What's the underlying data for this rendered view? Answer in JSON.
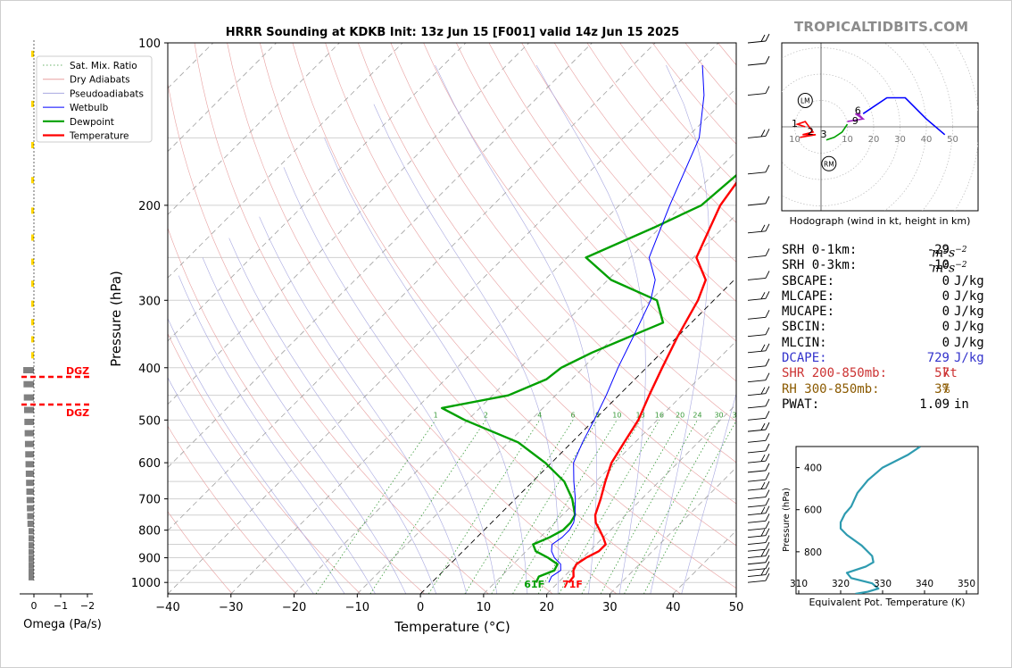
{
  "title": "HRRR Sounding at KDKB Init: 13z Jun 15 [F001] valid 14z Jun 15 2025",
  "site": "TROPICALTIDBITS.COM",
  "colors": {
    "temperature": "#ff0000",
    "dewpoint": "#00a000",
    "wetbulb": "#0000ff",
    "dgz": "#ff0000",
    "omega": "#808080",
    "omega_yellow": "#ffd700",
    "thetae": "#2e9bb0",
    "hodo_0_1": "#ff0000",
    "hodo_1_3": "#00a000",
    "hodo_3_6": "#a020c0",
    "hodo_6_9": "#0000ff",
    "dcape": "#3333cc",
    "shr": "#cc3333",
    "rh": "#8b5a00"
  },
  "chart_data": [
    {
      "type": "line",
      "subtype": "skew-t log-p",
      "title": "HRRR Sounding at KDKB Init: 13z Jun 15 [F001] valid 14z Jun 15 2025",
      "xlabel": "Temperature (°C)",
      "ylabel": "Pressure (hPa)",
      "xlim": [
        -40,
        50
      ],
      "ylim": [
        1050,
        100
      ],
      "yscale": "log",
      "x_ticks": [
        "−40",
        "−30",
        "−20",
        "−10",
        "0",
        "10",
        "20",
        "30",
        "40",
        "50"
      ],
      "y_ticks": [
        "100",
        "200",
        "300",
        "400",
        "500",
        "600",
        "700",
        "800",
        "900",
        "1000"
      ],
      "legend": [
        "Sat. Mix. Ratio",
        "Dry Adiabats",
        "Pseudoadiabats",
        "Wetbulb",
        "Dewpoint",
        "Temperature"
      ],
      "legend_position": "top-left",
      "mixing_ratio_labels": [
        "1",
        "2",
        "4",
        "6",
        "8",
        "10",
        "13",
        "16",
        "20",
        "24",
        "30",
        "36"
      ],
      "surface_labels": {
        "dewpoint": "61F",
        "temperature": "71F"
      },
      "series": [
        {
          "name": "Temperature",
          "points": [
            [
              21.7,
              1000
            ],
            [
              21.5,
              975
            ],
            [
              20.5,
              950
            ],
            [
              20.0,
              925
            ],
            [
              20.5,
              900
            ],
            [
              21.5,
              875
            ],
            [
              21.5,
              850
            ],
            [
              20.0,
              825
            ],
            [
              18.3,
              800
            ],
            [
              16.5,
              775
            ],
            [
              15.2,
              750
            ],
            [
              13.5,
              700
            ],
            [
              11.5,
              650
            ],
            [
              9.5,
              600
            ],
            [
              8.3,
              550
            ],
            [
              7.0,
              500
            ],
            [
              4.8,
              450
            ],
            [
              2.5,
              400
            ],
            [
              0.0,
              350
            ],
            [
              -2.5,
              300
            ],
            [
              -4.5,
              275
            ],
            [
              -9.5,
              250
            ],
            [
              -14.0,
              200
            ],
            [
              -17.0,
              150
            ],
            [
              -13.5,
              125
            ],
            [
              -5.5,
              110
            ],
            [
              0.5,
              100
            ]
          ]
        },
        {
          "name": "Dewpoint",
          "points": [
            [
              16.5,
              1000
            ],
            [
              16.0,
              975
            ],
            [
              17.5,
              950
            ],
            [
              17.0,
              925
            ],
            [
              14.5,
              900
            ],
            [
              11.5,
              875
            ],
            [
              10.0,
              850
            ],
            [
              11.5,
              825
            ],
            [
              12.5,
              800
            ],
            [
              12.5,
              775
            ],
            [
              12.0,
              750
            ],
            [
              9.0,
              700
            ],
            [
              5.0,
              650
            ],
            [
              -1.0,
              600
            ],
            [
              -8.5,
              550
            ],
            [
              -20.5,
              500
            ],
            [
              -26.0,
              475
            ],
            [
              -17.5,
              450
            ],
            [
              -14.0,
              420
            ],
            [
              -13.5,
              400
            ],
            [
              -11.0,
              375
            ],
            [
              -7.5,
              350
            ],
            [
              -4.5,
              330
            ],
            [
              -9.0,
              300
            ],
            [
              -19.5,
              275
            ],
            [
              -27.0,
              250
            ],
            [
              -21.0,
              220
            ],
            [
              -17.0,
              200
            ],
            [
              -16.0,
              170
            ],
            [
              -15.5,
              150
            ],
            [
              -18.0,
              125
            ],
            [
              -19.0,
              110
            ],
            [
              -15.5,
              100
            ]
          ]
        },
        {
          "name": "Wetbulb",
          "points": [
            [
              18.5,
              1000
            ],
            [
              18.0,
              975
            ],
            [
              18.5,
              950
            ],
            [
              17.5,
              925
            ],
            [
              15.5,
              900
            ],
            [
              14.0,
              875
            ],
            [
              13.0,
              850
            ],
            [
              13.5,
              825
            ],
            [
              13.5,
              800
            ],
            [
              13.0,
              775
            ],
            [
              12.0,
              750
            ],
            [
              9.5,
              700
            ],
            [
              6.5,
              650
            ],
            [
              3.5,
              600
            ],
            [
              1.7,
              550
            ],
            [
              0.0,
              500
            ],
            [
              -2.0,
              450
            ],
            [
              -4.5,
              400
            ],
            [
              -7.0,
              350
            ],
            [
              -10.0,
              300
            ],
            [
              -12.5,
              275
            ],
            [
              -17.0,
              250
            ],
            [
              -22.0,
              200
            ],
            [
              -28.0,
              150
            ],
            [
              -34.0,
              125
            ],
            [
              -39.0,
              110
            ]
          ]
        }
      ]
    },
    {
      "type": "bar",
      "subtype": "omega profile",
      "xlabel": "Omega (Pa/s)",
      "x_ticks": [
        "0",
        "−1",
        "−2"
      ],
      "dgz_label": "DGZ",
      "dgz_levels_hpa": [
        416,
        468
      ]
    },
    {
      "type": "line",
      "subtype": "hodograph",
      "caption": "Hodograph (wind in kt, height in km)",
      "ring_labels": [
        "10",
        "20",
        "30",
        "40",
        "50"
      ],
      "height_labels": [
        "1",
        "2",
        "3",
        "6",
        "9"
      ],
      "markers": [
        "LM",
        "RM"
      ]
    },
    {
      "type": "line",
      "subtype": "theta-e profile",
      "xlabel": "Equivalent Pot. Temperature (K)",
      "ylabel": "Pressure (hPa)",
      "x_ticks": [
        "310",
        "320",
        "330",
        "340",
        "350"
      ],
      "y_ticks": [
        "400",
        "600",
        "800"
      ],
      "xlim": [
        310,
        350
      ],
      "ylim": [
        1000,
        300
      ],
      "points": [
        [
          323.5,
          1000
        ],
        [
          326.5,
          990
        ],
        [
          329.0,
          975
        ],
        [
          327.5,
          950
        ],
        [
          322.5,
          925
        ],
        [
          321.5,
          900
        ],
        [
          326.0,
          870
        ],
        [
          327.8,
          850
        ],
        [
          327.5,
          820
        ],
        [
          325.0,
          770
        ],
        [
          321.5,
          720
        ],
        [
          320.0,
          690
        ],
        [
          320.0,
          660
        ],
        [
          321.0,
          620
        ],
        [
          322.5,
          585
        ],
        [
          324.0,
          520
        ],
        [
          326.5,
          460
        ],
        [
          330.0,
          400
        ],
        [
          336.0,
          340
        ],
        [
          339.0,
          300
        ]
      ]
    }
  ],
  "stats": [
    {
      "key": "SRH 0-1km:",
      "value": "-29",
      "unit_base": "m",
      "unit_sup1": "2",
      "unit_mid": "s",
      "unit_sup2": "−2",
      "color": "#000000"
    },
    {
      "key": "SRH 0-3km:",
      "value": "-10",
      "unit_base": "m",
      "unit_sup1": "2",
      "unit_mid": "s",
      "unit_sup2": "−2",
      "color": "#000000"
    },
    {
      "key": "SBCAPE:",
      "value": "0",
      "unit": "J/kg",
      "color": "#000000"
    },
    {
      "key": "MLCAPE:",
      "value": "0",
      "unit": "J/kg",
      "color": "#000000"
    },
    {
      "key": "MUCAPE:",
      "value": "0",
      "unit": "J/kg",
      "color": "#000000"
    },
    {
      "key": "SBCIN:",
      "value": "0",
      "unit": "J/kg",
      "color": "#000000"
    },
    {
      "key": "MLCIN:",
      "value": "0",
      "unit": "J/kg",
      "color": "#000000"
    },
    {
      "key": "DCAPE:",
      "value": "729",
      "unit": "J/kg",
      "color": "#3333cc"
    },
    {
      "key": "SHR 200-850mb:",
      "value": "57",
      "unit": "kt",
      "color": "#cc3333"
    },
    {
      "key": "RH 300-850mb:",
      "value": "37",
      "unit": "%",
      "color": "#8b5a00"
    },
    {
      "key": "PWAT:",
      "value": "1.09",
      "unit": "in",
      "color": "#000000"
    }
  ]
}
